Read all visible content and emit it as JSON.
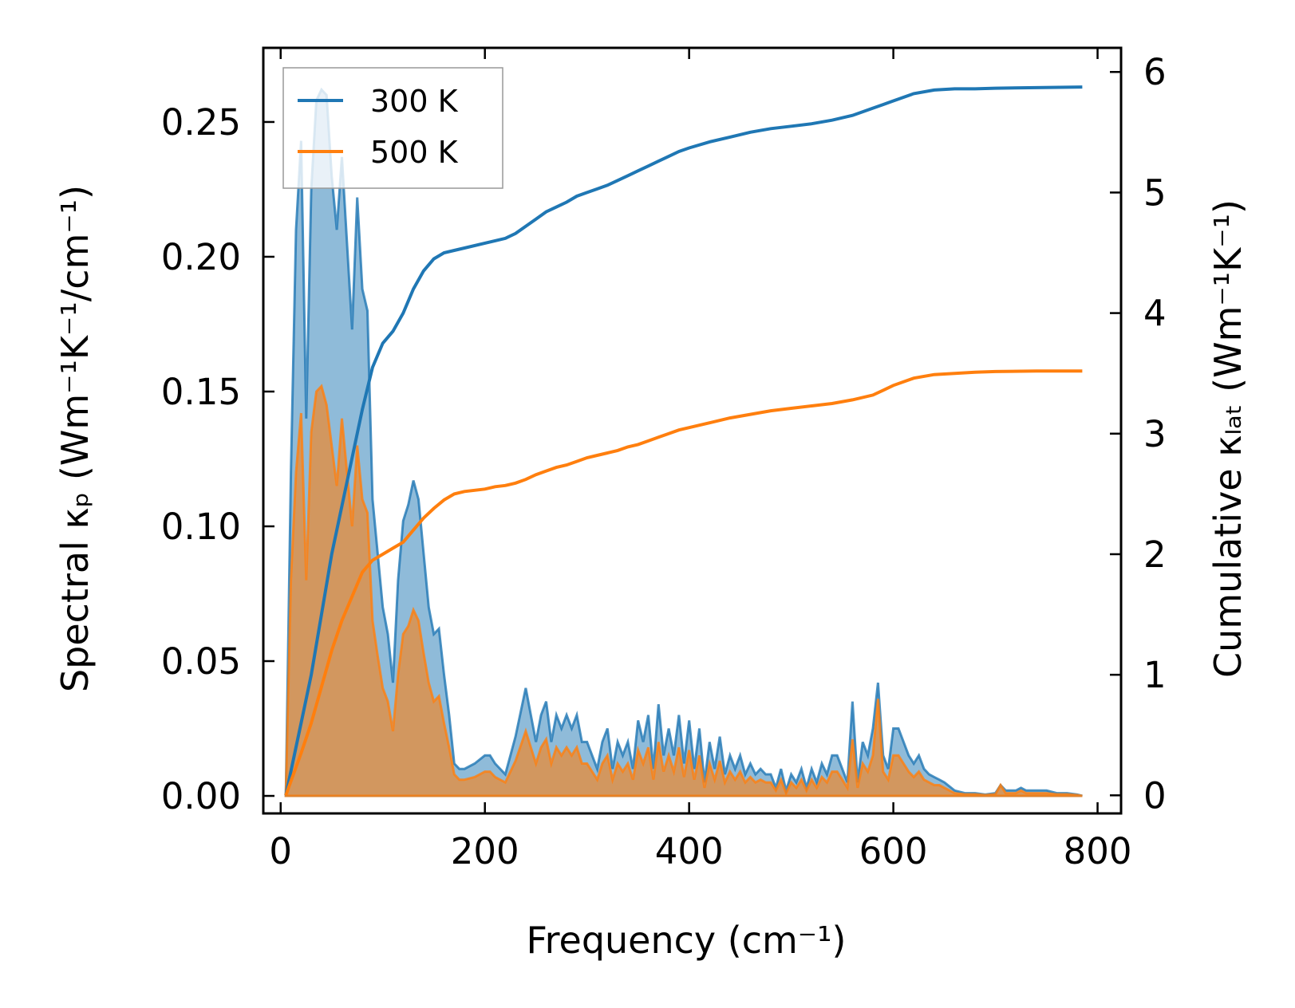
{
  "chart_data": {
    "type": "area",
    "xlabel": "Frequency (cm⁻¹)",
    "ylabel_left": "Spectral κₚ (Wm⁻¹K⁻¹/cm⁻¹)",
    "ylabel_right": "Cumulative κₗₐₜ (Wm⁻¹K⁻¹)",
    "xlim": [
      -17,
      823
    ],
    "ylim_left": [
      -0.0065,
      0.2775
    ],
    "ylim_right": [
      -0.15,
      6.2
    ],
    "x_ticks": [
      0,
      200,
      400,
      600,
      800
    ],
    "x_tick_labels": [
      "0",
      "200",
      "400",
      "600",
      "800"
    ],
    "y_left_ticks": [
      0,
      0.05,
      0.1,
      0.15,
      0.2,
      0.25
    ],
    "y_left_tick_labels": [
      "0.00",
      "0.05",
      "0.10",
      "0.15",
      "0.20",
      "0.25"
    ],
    "y_right_ticks": [
      0,
      1,
      2,
      3,
      4,
      5,
      6
    ],
    "y_right_tick_labels": [
      "0",
      "1",
      "2",
      "3",
      "4",
      "5",
      "6"
    ],
    "legend": {
      "position": "upper-left",
      "entries": [
        "300 K",
        "500 K"
      ]
    },
    "series": [
      {
        "name": "300 K",
        "color": "#1f77b4",
        "spectral": {
          "x": [
            5,
            10,
            15,
            20,
            25,
            30,
            35,
            40,
            45,
            50,
            55,
            60,
            65,
            70,
            75,
            80,
            85,
            90,
            95,
            100,
            105,
            110,
            115,
            120,
            125,
            130,
            135,
            140,
            145,
            150,
            155,
            160,
            165,
            170,
            175,
            180,
            190,
            200,
            205,
            210,
            220,
            230,
            240,
            245,
            250,
            255,
            260,
            265,
            270,
            275,
            280,
            285,
            290,
            295,
            300,
            305,
            310,
            315,
            320,
            325,
            330,
            335,
            340,
            345,
            350,
            355,
            360,
            365,
            370,
            375,
            380,
            385,
            390,
            395,
            400,
            405,
            410,
            415,
            420,
            425,
            430,
            435,
            440,
            445,
            450,
            455,
            460,
            465,
            470,
            475,
            480,
            485,
            490,
            495,
            500,
            505,
            510,
            515,
            520,
            525,
            530,
            535,
            540,
            545,
            550,
            555,
            560,
            565,
            570,
            575,
            580,
            585,
            590,
            595,
            600,
            605,
            610,
            615,
            620,
            625,
            630,
            635,
            640,
            645,
            650,
            660,
            670,
            680,
            690,
            700,
            705,
            710,
            715,
            720,
            725,
            730,
            735,
            740,
            745,
            750,
            760,
            770,
            780,
            785
          ],
          "values": [
            0,
            0.12,
            0.21,
            0.243,
            0.14,
            0.225,
            0.258,
            0.262,
            0.26,
            0.23,
            0.21,
            0.237,
            0.205,
            0.173,
            0.222,
            0.188,
            0.18,
            0.11,
            0.09,
            0.07,
            0.06,
            0.042,
            0.08,
            0.102,
            0.108,
            0.117,
            0.11,
            0.09,
            0.07,
            0.06,
            0.062,
            0.045,
            0.03,
            0.012,
            0.01,
            0.01,
            0.012,
            0.015,
            0.015,
            0.012,
            0.008,
            0.022,
            0.04,
            0.03,
            0.02,
            0.03,
            0.035,
            0.02,
            0.03,
            0.025,
            0.03,
            0.025,
            0.03,
            0.02,
            0.02,
            0.015,
            0.01,
            0.02,
            0.025,
            0.01,
            0.02,
            0.015,
            0.02,
            0.01,
            0.028,
            0.02,
            0.03,
            0.01,
            0.034,
            0.015,
            0.025,
            0.015,
            0.03,
            0.012,
            0.028,
            0.01,
            0.025,
            0.005,
            0.02,
            0.01,
            0.022,
            0.008,
            0.015,
            0.01,
            0.015,
            0.008,
            0.012,
            0.008,
            0.01,
            0.008,
            0.008,
            0.003,
            0.01,
            0.002,
            0.008,
            0.005,
            0.01,
            0.003,
            0.01,
            0.005,
            0.012,
            0.008,
            0.015,
            0.015,
            0.01,
            0.005,
            0.035,
            0.005,
            0.02,
            0.015,
            0.025,
            0.042,
            0.015,
            0.01,
            0.025,
            0.025,
            0.02,
            0.015,
            0.012,
            0.015,
            0.01,
            0.008,
            0.007,
            0.006,
            0.005,
            0.002,
            0.001,
            0.001,
            0.0005,
            0.001,
            0.004,
            0.002,
            0.002,
            0.002,
            0.003,
            0.002,
            0.002,
            0.002,
            0.002,
            0.002,
            0.001,
            0.001,
            0.0005,
            0
          ]
        },
        "cumulative": {
          "x": [
            5,
            20,
            30,
            40,
            50,
            60,
            70,
            80,
            90,
            100,
            110,
            120,
            130,
            140,
            150,
            160,
            170,
            180,
            200,
            210,
            220,
            230,
            240,
            250,
            260,
            270,
            280,
            290,
            300,
            310,
            320,
            330,
            340,
            350,
            360,
            370,
            380,
            390,
            400,
            420,
            440,
            460,
            480,
            500,
            520,
            540,
            560,
            580,
            590,
            600,
            620,
            640,
            660,
            680,
            700,
            740,
            785
          ],
          "values": [
            0,
            0.6,
            1.0,
            1.5,
            2.0,
            2.4,
            2.8,
            3.2,
            3.55,
            3.75,
            3.85,
            4.0,
            4.2,
            4.35,
            4.45,
            4.5,
            4.52,
            4.54,
            4.58,
            4.6,
            4.62,
            4.66,
            4.72,
            4.78,
            4.84,
            4.88,
            4.92,
            4.97,
            5.0,
            5.03,
            5.06,
            5.1,
            5.14,
            5.18,
            5.22,
            5.26,
            5.3,
            5.34,
            5.37,
            5.42,
            5.46,
            5.5,
            5.53,
            5.55,
            5.57,
            5.6,
            5.64,
            5.7,
            5.73,
            5.76,
            5.82,
            5.85,
            5.86,
            5.86,
            5.865,
            5.87,
            5.875
          ]
        }
      },
      {
        "name": "500 K",
        "color": "#ff7f0e",
        "spectral": {
          "x": [
            5,
            10,
            15,
            20,
            25,
            30,
            35,
            40,
            45,
            50,
            55,
            60,
            65,
            70,
            75,
            80,
            85,
            90,
            95,
            100,
            105,
            110,
            115,
            120,
            125,
            130,
            135,
            140,
            145,
            150,
            155,
            160,
            165,
            170,
            175,
            180,
            190,
            200,
            205,
            210,
            220,
            230,
            240,
            245,
            250,
            255,
            260,
            265,
            270,
            275,
            280,
            285,
            290,
            295,
            300,
            305,
            310,
            315,
            320,
            325,
            330,
            335,
            340,
            345,
            350,
            355,
            360,
            365,
            370,
            375,
            380,
            385,
            390,
            395,
            400,
            405,
            410,
            415,
            420,
            425,
            430,
            435,
            440,
            445,
            450,
            455,
            460,
            465,
            470,
            475,
            480,
            485,
            490,
            495,
            500,
            505,
            510,
            515,
            520,
            525,
            530,
            535,
            540,
            545,
            550,
            555,
            560,
            565,
            570,
            575,
            580,
            585,
            590,
            595,
            600,
            605,
            610,
            615,
            620,
            625,
            630,
            635,
            640,
            645,
            650,
            660,
            670,
            680,
            690,
            700,
            705,
            710,
            715,
            720,
            725,
            730,
            735,
            740,
            745,
            750,
            760,
            770,
            780,
            785
          ],
          "values": [
            0,
            0.08,
            0.12,
            0.142,
            0.08,
            0.135,
            0.15,
            0.152,
            0.145,
            0.13,
            0.115,
            0.14,
            0.12,
            0.1,
            0.13,
            0.11,
            0.105,
            0.065,
            0.052,
            0.04,
            0.035,
            0.024,
            0.045,
            0.06,
            0.063,
            0.069,
            0.065,
            0.053,
            0.042,
            0.035,
            0.037,
            0.027,
            0.018,
            0.008,
            0.006,
            0.006,
            0.007,
            0.009,
            0.009,
            0.007,
            0.005,
            0.013,
            0.024,
            0.018,
            0.012,
            0.018,
            0.021,
            0.012,
            0.018,
            0.015,
            0.018,
            0.015,
            0.018,
            0.012,
            0.012,
            0.009,
            0.006,
            0.012,
            0.015,
            0.006,
            0.012,
            0.009,
            0.012,
            0.006,
            0.017,
            0.012,
            0.018,
            0.006,
            0.02,
            0.009,
            0.015,
            0.009,
            0.018,
            0.007,
            0.017,
            0.006,
            0.015,
            0.003,
            0.012,
            0.006,
            0.013,
            0.005,
            0.009,
            0.006,
            0.009,
            0.005,
            0.007,
            0.005,
            0.006,
            0.005,
            0.005,
            0.002,
            0.006,
            0.001,
            0.005,
            0.003,
            0.006,
            0.002,
            0.006,
            0.003,
            0.007,
            0.005,
            0.009,
            0.009,
            0.006,
            0.003,
            0.021,
            0.003,
            0.012,
            0.009,
            0.015,
            0.036,
            0.009,
            0.006,
            0.015,
            0.015,
            0.012,
            0.009,
            0.007,
            0.009,
            0.006,
            0.005,
            0.004,
            0.004,
            0.003,
            0.001,
            0.0006,
            0.0006,
            0.0003,
            0.0006,
            0.004,
            0.001,
            0.001,
            0.001,
            0.002,
            0.001,
            0.001,
            0.001,
            0.001,
            0.001,
            0.0006,
            0.0006,
            0.0003,
            0
          ]
        },
        "cumulative": {
          "x": [
            5,
            20,
            30,
            40,
            50,
            60,
            70,
            80,
            90,
            100,
            110,
            120,
            130,
            140,
            150,
            160,
            170,
            180,
            200,
            210,
            220,
            230,
            240,
            250,
            260,
            270,
            280,
            290,
            300,
            310,
            320,
            330,
            340,
            350,
            360,
            370,
            380,
            390,
            400,
            420,
            440,
            460,
            480,
            500,
            520,
            540,
            560,
            580,
            590,
            600,
            620,
            640,
            660,
            680,
            700,
            740,
            785
          ],
          "values": [
            0,
            0.35,
            0.6,
            0.9,
            1.2,
            1.45,
            1.65,
            1.85,
            1.95,
            2.0,
            2.05,
            2.1,
            2.2,
            2.3,
            2.38,
            2.45,
            2.5,
            2.52,
            2.54,
            2.56,
            2.57,
            2.59,
            2.62,
            2.66,
            2.69,
            2.72,
            2.74,
            2.77,
            2.8,
            2.82,
            2.84,
            2.86,
            2.89,
            2.91,
            2.94,
            2.97,
            3.0,
            3.03,
            3.05,
            3.09,
            3.13,
            3.16,
            3.19,
            3.21,
            3.23,
            3.25,
            3.28,
            3.32,
            3.36,
            3.4,
            3.46,
            3.49,
            3.5,
            3.51,
            3.515,
            3.52,
            3.52
          ]
        }
      }
    ]
  }
}
